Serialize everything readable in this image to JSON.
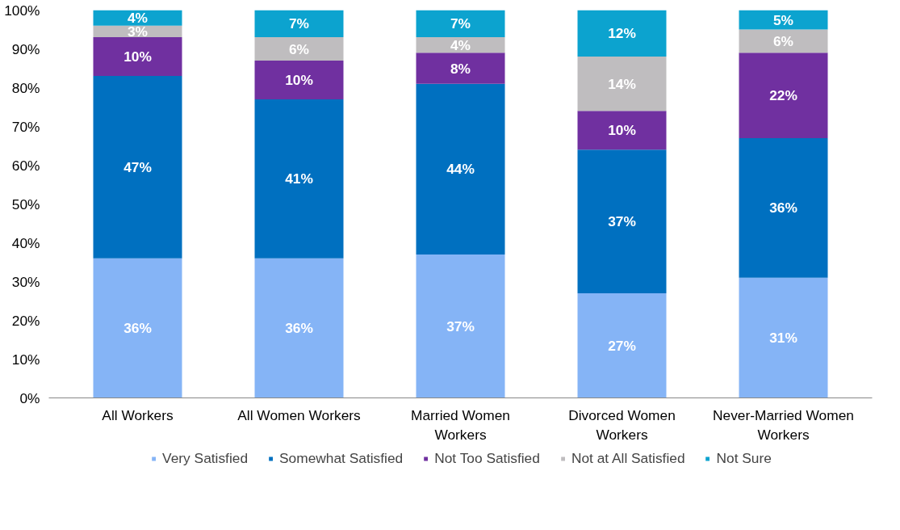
{
  "chart_data": {
    "type": "bar",
    "stacked": true,
    "categories": [
      "All Workers",
      "All Women Workers",
      "Married Women Workers",
      "Divorced Women Workers",
      "Never-Married Women Workers"
    ],
    "series": [
      {
        "name": "Very Satisfied",
        "color": "#85b4f6",
        "values": [
          36,
          36,
          37,
          27,
          31
        ],
        "value_labels": [
          "36%",
          "36%",
          "37%",
          "27%",
          "31%"
        ]
      },
      {
        "name": "Somewhat Satisfied",
        "color": "#0070c0",
        "values": [
          47,
          41,
          44,
          37,
          36
        ],
        "value_labels": [
          "47%",
          "41%",
          "44%",
          "37%",
          "36%"
        ]
      },
      {
        "name": "Not Too Satisfied",
        "color": "#7030a0",
        "values": [
          10,
          10,
          8,
          10,
          22
        ],
        "value_labels": [
          "10%",
          "10%",
          "8%",
          "10%",
          "22%"
        ]
      },
      {
        "name": "Not at All Satisfied",
        "color": "#bfbdbf",
        "values": [
          3,
          6,
          4,
          14,
          6
        ],
        "value_labels": [
          "3%",
          "6%",
          "4%",
          "14%",
          "6%"
        ]
      },
      {
        "name": "Not Sure",
        "color": "#0ca3cf",
        "values": [
          4,
          7,
          7,
          12,
          5
        ],
        "value_labels": [
          "4%",
          "7%",
          "7%",
          "12%",
          "5%"
        ]
      }
    ],
    "ylim": [
      0,
      100
    ],
    "yticks": [
      {
        "value": 0,
        "label": "0%"
      },
      {
        "value": 10,
        "label": "10%"
      },
      {
        "value": 20,
        "label": "20%"
      },
      {
        "value": 30,
        "label": "30%"
      },
      {
        "value": 40,
        "label": "40%"
      },
      {
        "value": 50,
        "label": "50%"
      },
      {
        "value": 60,
        "label": "60%"
      },
      {
        "value": 70,
        "label": "70%"
      },
      {
        "value": 80,
        "label": "80%"
      },
      {
        "value": 90,
        "label": "90%"
      },
      {
        "value": 100,
        "label": "100%"
      }
    ],
    "grid": false,
    "legend": "bottom"
  }
}
